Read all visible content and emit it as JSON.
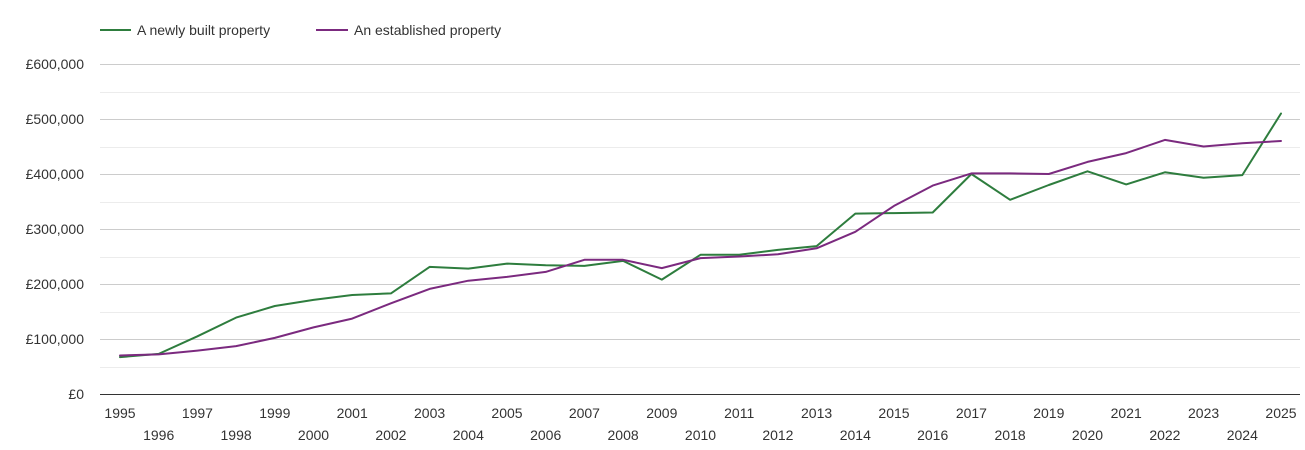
{
  "chart_data": {
    "type": "line",
    "title": "",
    "xlabel": "",
    "ylabel": "",
    "x": [
      1995,
      1996,
      1997,
      1998,
      1999,
      2000,
      2001,
      2002,
      2003,
      2004,
      2005,
      2006,
      2007,
      2008,
      2009,
      2010,
      2011,
      2012,
      2013,
      2014,
      2015,
      2016,
      2017,
      2018,
      2019,
      2020,
      2021,
      2022,
      2023,
      2024,
      2025
    ],
    "x_tick_labels": [
      "1995",
      "1996",
      "1997",
      "1998",
      "1999",
      "2000",
      "2001",
      "2002",
      "2003",
      "2004",
      "2005",
      "2006",
      "2007",
      "2008",
      "2009",
      "2010",
      "2011",
      "2012",
      "2013",
      "2014",
      "2015",
      "2016",
      "2017",
      "2018",
      "2019",
      "2020",
      "2021",
      "2022",
      "2023",
      "2024",
      "2025"
    ],
    "ylim": [
      0,
      600000
    ],
    "y_ticks": [
      0,
      100000,
      200000,
      300000,
      400000,
      500000,
      600000
    ],
    "y_tick_labels": [
      "£0",
      "£100,000",
      "£200,000",
      "£300,000",
      "£400,000",
      "£500,000",
      "£600,000"
    ],
    "grid": true,
    "legend_position": "top-left",
    "series": [
      {
        "name": "A newly built property",
        "color": "#2e7d3e",
        "values": [
          67000,
          73000,
          105000,
          139000,
          160000,
          171000,
          180000,
          183000,
          231000,
          228000,
          237000,
          234000,
          233000,
          242000,
          208000,
          253000,
          253000,
          262000,
          269000,
          328000,
          329000,
          330000,
          400000,
          353000,
          380000,
          405000,
          381000,
          403000,
          393000,
          398000,
          510000
        ]
      },
      {
        "name": "An established property",
        "color": "#7b2a7f",
        "values": [
          70000,
          72000,
          79000,
          87000,
          102000,
          121000,
          137000,
          165000,
          191000,
          206000,
          213000,
          222000,
          244000,
          244000,
          229000,
          247000,
          250000,
          254000,
          265000,
          295000,
          342000,
          379000,
          401000,
          401000,
          400000,
          422000,
          438000,
          462000,
          450000,
          456000,
          460000
        ]
      }
    ]
  }
}
